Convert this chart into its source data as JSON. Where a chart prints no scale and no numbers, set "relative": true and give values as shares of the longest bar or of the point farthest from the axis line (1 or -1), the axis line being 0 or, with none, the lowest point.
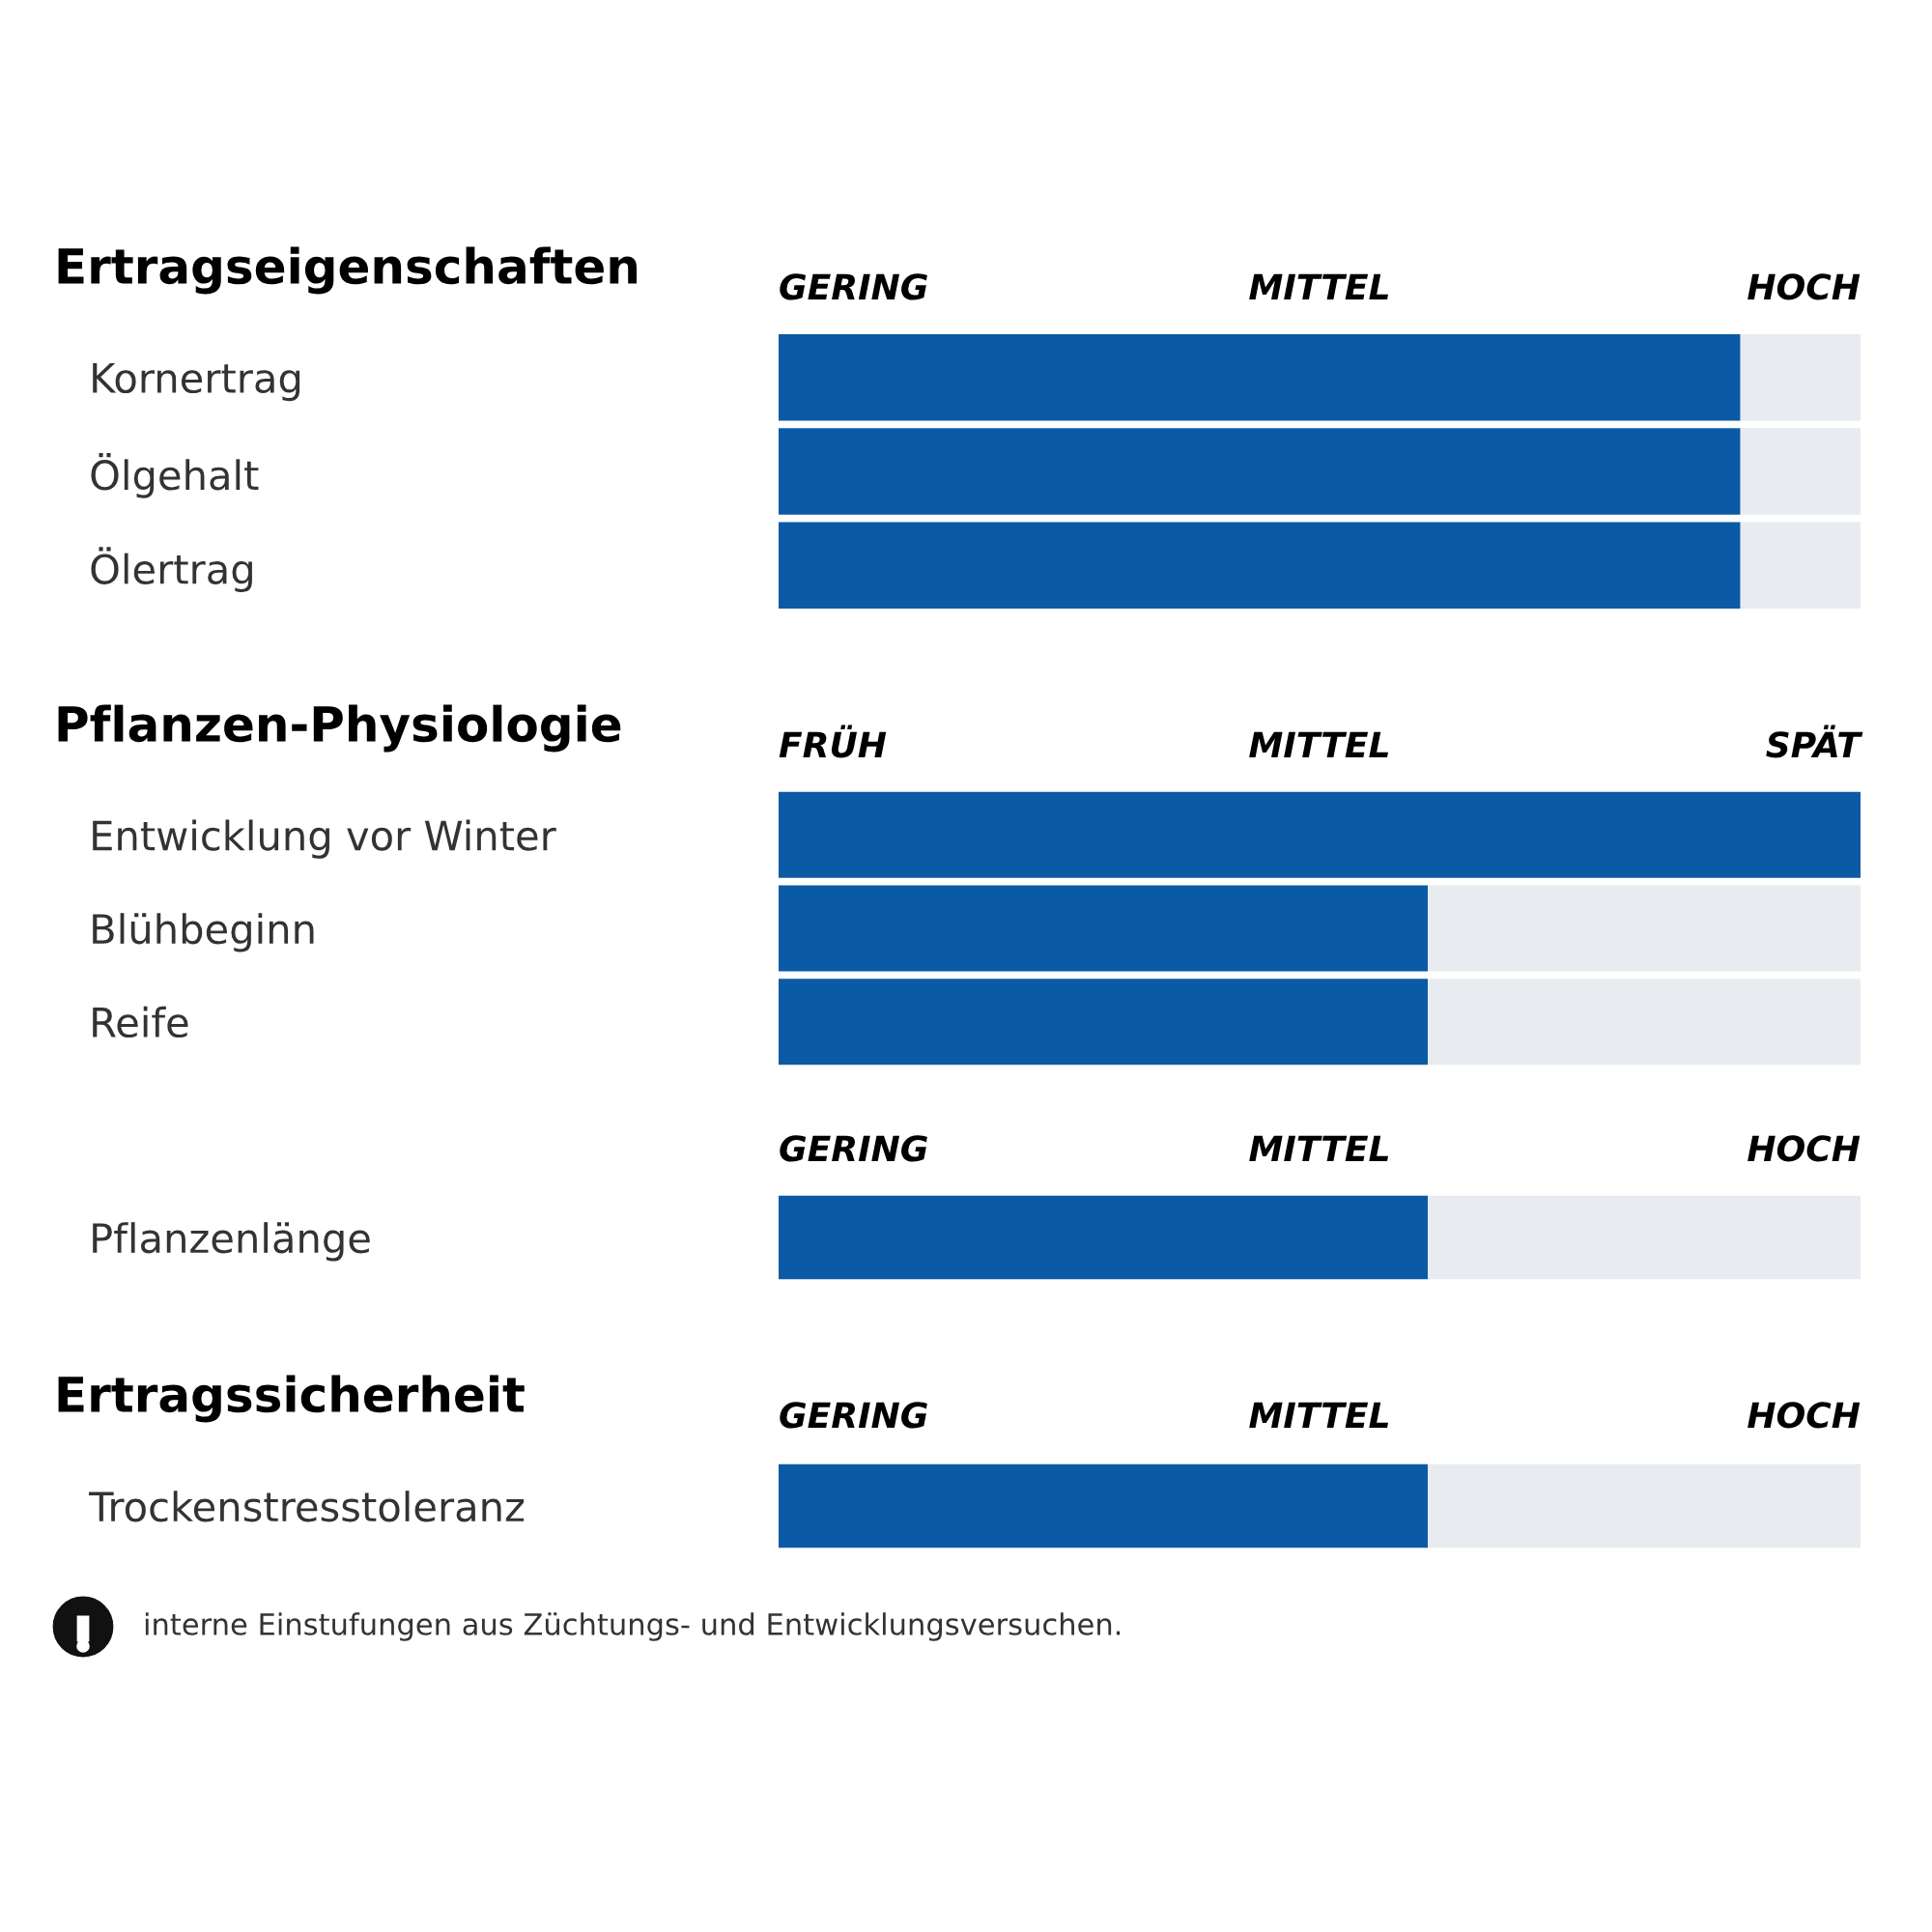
{
  "chart_data": [
    {
      "type": "bar",
      "orientation": "horizontal",
      "stacked": true,
      "relative": true,
      "title": "Ertragseigenschaften",
      "categories": [
        "Kornertrag",
        "Ölgehalt",
        "Ölertrag"
      ],
      "series": [
        {
          "color": "#0b5aa6",
          "values": [
            0.889,
            0.889,
            0.889
          ]
        },
        {
          "color": "#e8ebef",
          "values": [
            0.111,
            0.111,
            0.111
          ]
        }
      ],
      "annotations": [
        "GERING",
        "MITTEL",
        "HOCH"
      ]
    },
    {
      "type": "bar",
      "orientation": "horizontal",
      "stacked": true,
      "relative": true,
      "title": "Pflanzen-Physiologie",
      "categories": [
        "Entwicklung vor Winter",
        "Blühbeginn",
        "Reife"
      ],
      "series": [
        {
          "color": "#0b5aa6",
          "values": [
            1,
            0.6,
            0.6
          ]
        },
        {
          "color": "#e8ebef",
          "values": [
            0,
            0.4,
            0.4
          ]
        }
      ],
      "annotations": [
        "FRÜH",
        "MITTEL",
        "SPÄT"
      ]
    },
    {
      "type": "bar",
      "orientation": "horizontal",
      "stacked": true,
      "relative": true,
      "categories": [
        "Pflanzenlänge"
      ],
      "series": [
        {
          "color": "#0b5aa6",
          "values": [
            0.6
          ]
        },
        {
          "color": "#e8ebef",
          "values": [
            0.4
          ]
        }
      ],
      "annotations": [
        "GERING",
        "MITTEL",
        "HOCH"
      ]
    },
    {
      "type": "bar",
      "orientation": "horizontal",
      "stacked": true,
      "relative": true,
      "title": "Ertragssicherheit",
      "categories": [
        "Trockenstresstoleranz"
      ],
      "series": [
        {
          "color": "#0b5aa6",
          "values": [
            0.6
          ]
        },
        {
          "color": "#e8ebef",
          "values": [
            0.4
          ]
        }
      ],
      "annotations": [
        "GERING",
        "MITTEL",
        "HOCH"
      ]
    },
    {
      "type": "other",
      "annotations": [
        "interne Einstufungen aus Züchtungs- und Entwicklungsversuchen."
      ]
    }
  ]
}
